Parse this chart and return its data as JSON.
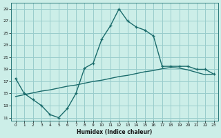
{
  "xlabel": "Humidex (Indice chaleur)",
  "bg_color": "#cceee8",
  "grid_color": "#99cccc",
  "line_color": "#1a6b6b",
  "xlim": [
    -0.5,
    23.5
  ],
  "ylim": [
    10.5,
    30
  ],
  "xticks": [
    0,
    1,
    2,
    3,
    4,
    5,
    6,
    7,
    8,
    9,
    10,
    11,
    12,
    13,
    14,
    15,
    16,
    17,
    18,
    19,
    20,
    21,
    22,
    23
  ],
  "yticks": [
    11,
    13,
    15,
    17,
    19,
    21,
    23,
    25,
    27,
    29
  ],
  "curve1_x": [
    0,
    1,
    2,
    3,
    4,
    5,
    6,
    7,
    8,
    9,
    10,
    11,
    12,
    13,
    14,
    15,
    16,
    17,
    18,
    19,
    20,
    21,
    22,
    23
  ],
  "curve1_y": [
    17.5,
    15.0,
    14.0,
    13.0,
    11.5,
    11.0,
    12.5,
    15.0,
    19.2,
    20.0,
    24.0,
    26.2,
    29.0,
    27.0,
    26.0,
    25.5,
    24.5,
    19.5,
    19.5,
    19.5,
    19.5,
    19.0,
    19.0,
    18.2
  ],
  "curve2_x": [
    0,
    1,
    2,
    3,
    4,
    5,
    6,
    7,
    8,
    9,
    10,
    11,
    12,
    13,
    14,
    15,
    16,
    17,
    18,
    19,
    20,
    21,
    22,
    23
  ],
  "curve2_y": [
    14.5,
    14.8,
    15.1,
    15.4,
    15.6,
    15.9,
    16.2,
    16.4,
    16.7,
    17.0,
    17.2,
    17.5,
    17.8,
    18.0,
    18.3,
    18.6,
    18.8,
    19.1,
    19.3,
    19.2,
    18.9,
    18.5,
    18.1,
    18.2
  ]
}
